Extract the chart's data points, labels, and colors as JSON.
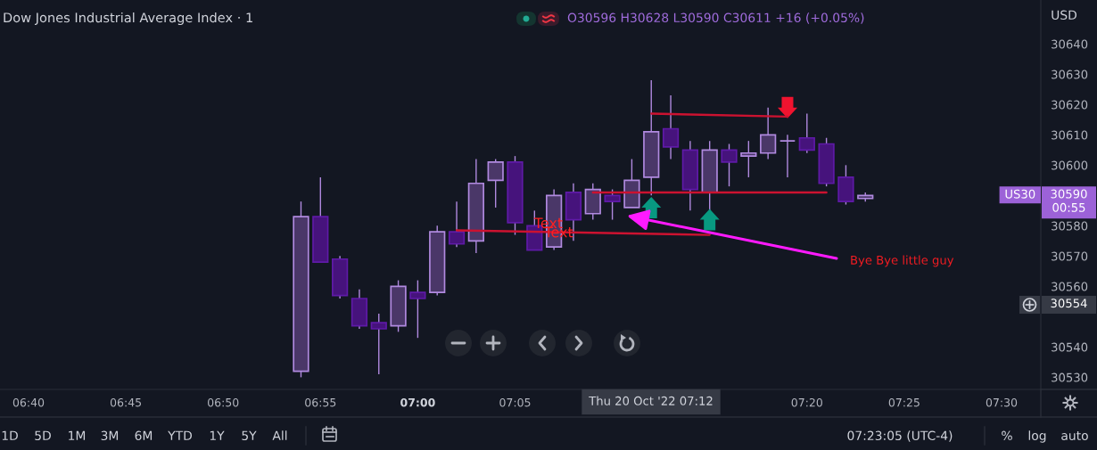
{
  "chart_data": {
    "type": "candlestick",
    "title": "Dow Jones Industrial Average Index · 1",
    "subtitle": "O30596 H30628 L30590 C30611 +16 (+0.05%)",
    "x": [
      "2022-10-20T06:54",
      "2022-10-20T06:55",
      "2022-10-20T06:56",
      "2022-10-20T06:57",
      "2022-10-20T06:58",
      "2022-10-20T06:59",
      "2022-10-20T07:00",
      "2022-10-20T07:01",
      "2022-10-20T07:02",
      "2022-10-20T07:03",
      "2022-10-20T07:04",
      "2022-10-20T07:05",
      "2022-10-20T07:06",
      "2022-10-20T07:07",
      "2022-10-20T07:08",
      "2022-10-20T07:09",
      "2022-10-20T07:10",
      "2022-10-20T07:11",
      "2022-10-20T07:12",
      "2022-10-20T07:13",
      "2022-10-20T07:14",
      "2022-10-20T07:15",
      "2022-10-20T07:16",
      "2022-10-20T07:17",
      "2022-10-20T07:18",
      "2022-10-20T07:19",
      "2022-10-20T07:20",
      "2022-10-20T07:21",
      "2022-10-20T07:22",
      "2022-10-20T07:23"
    ],
    "ohlc": [
      [
        30532,
        30588,
        30530,
        30583
      ],
      [
        30583,
        30596,
        30568,
        30568
      ],
      [
        30569,
        30570,
        30556,
        30557
      ],
      [
        30556,
        30559,
        30546,
        30547
      ],
      [
        30548,
        30551,
        30531,
        30546
      ],
      [
        30547,
        30562,
        30545,
        30560
      ],
      [
        30558,
        30562,
        30543,
        30556
      ],
      [
        30558,
        30580,
        30557,
        30578
      ],
      [
        30578,
        30588,
        30573,
        30574
      ],
      [
        30575,
        30602,
        30571,
        30594
      ],
      [
        30595,
        30602,
        30586,
        30601
      ],
      [
        30601,
        30603,
        30577,
        30581
      ],
      [
        30580,
        30585,
        30572,
        30572
      ],
      [
        30573,
        30592,
        30572,
        30590
      ],
      [
        30591,
        30594,
        30575,
        30582
      ],
      [
        30584,
        30594,
        30582,
        30592
      ],
      [
        30590,
        30592,
        30582,
        30588
      ],
      [
        30586,
        30602,
        30586,
        30595
      ],
      [
        30596,
        30628,
        30590,
        30611
      ],
      [
        30612,
        30623,
        30602,
        30606
      ],
      [
        30605,
        30608,
        30585,
        30592
      ],
      [
        30591,
        30608,
        30585,
        30605
      ],
      [
        30605,
        30607,
        30593,
        30601
      ],
      [
        30603,
        30608,
        30596,
        30604
      ],
      [
        30604,
        30619,
        30602,
        30610
      ],
      [
        30608,
        30610,
        30596,
        30608
      ],
      [
        30609,
        30617,
        30604,
        30605
      ],
      [
        30607,
        30609,
        30593,
        30594
      ],
      [
        30596,
        30600,
        30587,
        30588
      ],
      [
        30589,
        30591,
        30588,
        30590
      ]
    ],
    "color": "#b18ae0",
    "colors": [
      "#4a3768",
      "#46137c",
      "#46137c",
      "#46137c",
      "#46137c",
      "#4a3768",
      "#46137c",
      "#4a3768",
      "#46137c",
      "#4a3768",
      "#4a3768",
      "#46137c",
      "#46137c",
      "#4a3768",
      "#46137c",
      "#4a3768",
      "#46137c",
      "#4a3768",
      "#4a3768",
      "#46137c",
      "#46137c",
      "#4a3768",
      "#46137c",
      "#4a3768",
      "#4a3768",
      "#b18ae0",
      "#46137c",
      "#46137c",
      "#46137c",
      "#4a3768"
    ],
    "series": [
      {
        "type": "line",
        "color": "#cc1230",
        "x": [
          "2022-10-20T07:12",
          "2022-10-20T07:19"
        ],
        "values": [
          30617,
          30616
        ]
      },
      {
        "type": "line",
        "color": "#cc1230",
        "x": [
          "2022-10-20T07:09",
          "2022-10-20T07:21"
        ],
        "values": [
          30591,
          30591
        ]
      },
      {
        "type": "line",
        "color": "#cc1230",
        "x": [
          "2022-10-20T07:02",
          "2022-10-20T07:15"
        ],
        "values": [
          30578.5,
          30577
        ]
      },
      {
        "type": "scatter",
        "color": "#089981",
        "x": [
          "2022-10-20T07:12",
          "2022-10-20T07:15"
        ],
        "values": [
          30586,
          30582
        ]
      },
      {
        "type": "scatter",
        "color": "#f0132f",
        "x": [
          "2022-10-20T07:19"
        ],
        "values": [
          30619
        ]
      }
    ],
    "xlim": [
      "2022-10-20T06:38:32",
      "2022-10-20T07:32:01"
    ],
    "ylim": [
      30526,
      30654.5
    ],
    "xticks": [
      {
        "value": "2022-10-20T06:40",
        "label": "06:40"
      },
      {
        "value": "2022-10-20T06:45",
        "label": "06:45"
      },
      {
        "value": "2022-10-20T06:50",
        "label": "06:50"
      },
      {
        "value": "2022-10-20T06:55",
        "label": "06:55"
      },
      {
        "value": "2022-10-20T07:00",
        "label": "07:00"
      },
      {
        "value": "2022-10-20T07:05",
        "label": "07:05"
      },
      {
        "value": "2022-10-20T07:20",
        "label": "07:20"
      },
      {
        "value": "2022-10-20T07:25",
        "label": "07:25"
      },
      {
        "value": "2022-10-20T07:30",
        "label": "07:30"
      }
    ],
    "yticks": [
      30530,
      30540,
      30560,
      30570,
      30580,
      30600,
      30610,
      30620,
      30630,
      30640
    ],
    "annotations": [
      {
        "text": "Text",
        "x": "2022-10-20T07:06:43",
        "y": 30580.5
      },
      {
        "text": "Text",
        "x": "2022-10-20T07:07:15",
        "y": 30577.5
      },
      "Bye Bye little guy",
      "US30",
      "30590\n00:55",
      "30554",
      "Thu 20 Oct '22 07:12",
      "USD",
      "1D",
      "5D",
      "1M",
      "3M",
      "6M",
      "YTD",
      "1Y",
      "5Y",
      "All",
      "07:23:05 (UTC-4)",
      "%",
      "log",
      "auto"
    ]
  }
}
